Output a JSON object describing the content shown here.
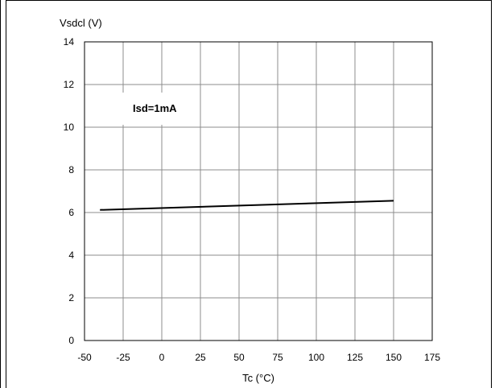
{
  "chart_data": {
    "type": "line",
    "ylabel": "Vsdcl (V)",
    "xlabel": "Tc (°C)",
    "annotation": "Isd=1mA",
    "xlim": [
      -50,
      175
    ],
    "ylim": [
      0,
      14
    ],
    "xticks": [
      -50,
      -25,
      0,
      25,
      50,
      75,
      100,
      125,
      150,
      175
    ],
    "yticks": [
      0,
      2,
      4,
      6,
      8,
      10,
      12,
      14
    ],
    "grid": true,
    "series": [
      {
        "x": [
          -40,
          150
        ],
        "y": [
          6.12,
          6.55
        ]
      }
    ]
  }
}
